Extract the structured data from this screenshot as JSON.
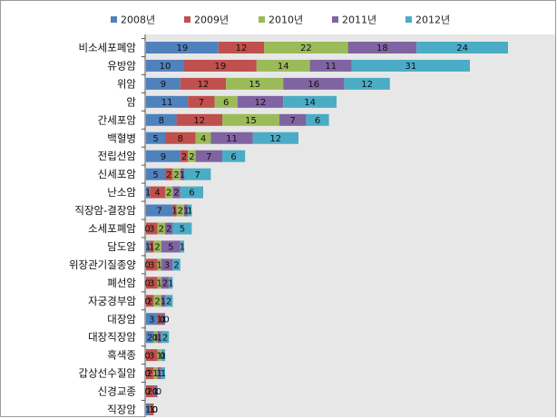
{
  "chart_data": {
    "type": "bar",
    "orientation": "horizontal",
    "stacked": true,
    "grid": false,
    "legend_position": "top",
    "title": "",
    "xlabel": "",
    "ylabel": "",
    "categories": [
      "비소세포폐암",
      "유방암",
      "위암",
      "암",
      "간세포암",
      "백혈병",
      "전립선암",
      "신세포암",
      "난소암",
      "직장암-결장암",
      "소세포폐암",
      "담도암",
      "위장관기질종양",
      "폐선암",
      "자궁경부암",
      "대장암",
      "대장직장암",
      "흑색종",
      "갑상선수질암",
      "신경교종",
      "직장암"
    ],
    "series": [
      {
        "name": "2008년",
        "color": "#4f81bd",
        "values": [
          19,
          10,
          9,
          11,
          8,
          5,
          9,
          5,
          1,
          7,
          0,
          1,
          0,
          0,
          0,
          3,
          2,
          0,
          0,
          0,
          1
        ]
      },
      {
        "name": "2009년",
        "color": "#c0504d",
        "values": [
          12,
          19,
          12,
          7,
          12,
          8,
          2,
          2,
          4,
          1,
          3,
          1,
          3,
          3,
          2,
          1,
          0,
          3,
          2,
          2,
          1
        ]
      },
      {
        "name": "2010년",
        "color": "#9bbb59",
        "values": [
          22,
          14,
          15,
          6,
          15,
          4,
          2,
          2,
          2,
          2,
          2,
          2,
          1,
          1,
          2,
          0,
          1,
          1,
          1,
          0,
          0
        ]
      },
      {
        "name": "2011년",
        "color": "#8064a2",
        "values": [
          18,
          11,
          16,
          12,
          7,
          11,
          7,
          1,
          2,
          1,
          2,
          5,
          3,
          2,
          1,
          1,
          1,
          0,
          1,
          1,
          0
        ]
      },
      {
        "name": "2012년",
        "color": "#4bacc6",
        "values": [
          24,
          31,
          12,
          14,
          6,
          12,
          6,
          7,
          6,
          1,
          5,
          1,
          2,
          1,
          2,
          0,
          2,
          1,
          1,
          0,
          0
        ]
      }
    ]
  }
}
